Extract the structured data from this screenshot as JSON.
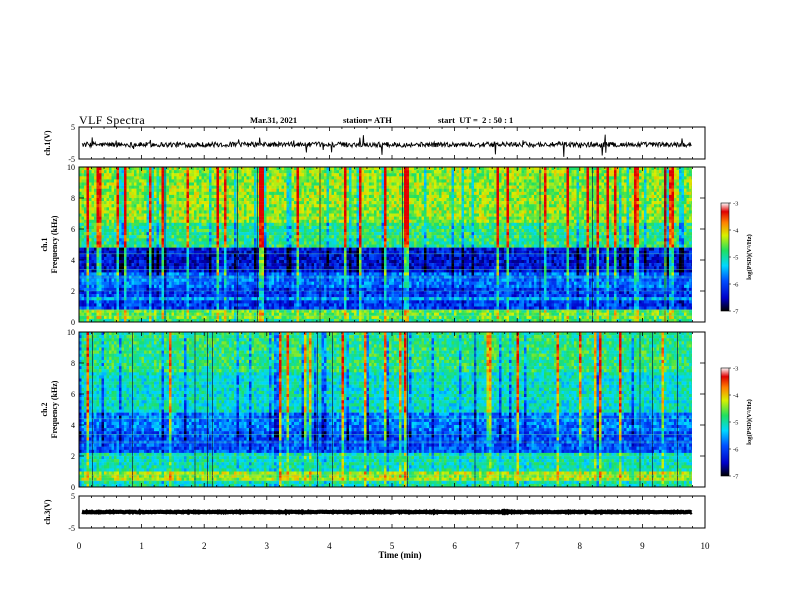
{
  "header": {
    "title": "VLF Spectra",
    "date": "Mar.31, 2021",
    "station": "station= ATH",
    "start_ut": "start  UT =  2 : 50 : 1"
  },
  "chart_data": [
    {
      "type": "line",
      "panel": "ch1-waveform",
      "ylabel": "ch.1(V)",
      "ylim": [
        -5,
        5
      ],
      "yticks": [
        "5",
        "-5"
      ],
      "xlim": [
        0,
        10
      ],
      "description_series": "noisy waveform around -0.5 V with spikes",
      "baseline": -0.5
    },
    {
      "type": "heatmap",
      "panel": "ch1-spectrogram",
      "ylabel": "Frequency (kHz)",
      "channel_label": "ch.1",
      "ylim": [
        0,
        10
      ],
      "yticks": [
        "0",
        "2",
        "4",
        "6",
        "8",
        "10"
      ],
      "xlim": [
        0,
        9.85
      ],
      "colorbar": {
        "label": "log(PSD)(V²/Hz)",
        "range": [
          -7,
          -3
        ],
        "ticks": [
          "-3",
          "-4",
          "-5",
          "-6",
          "-7"
        ]
      }
    },
    {
      "type": "heatmap",
      "panel": "ch2-spectrogram",
      "ylabel": "Frequency (kHz)",
      "channel_label": "ch.2",
      "ylim": [
        0,
        10
      ],
      "yticks": [
        "0",
        "2",
        "4",
        "6",
        "8",
        "10"
      ],
      "xlim": [
        0,
        9.85
      ],
      "colorbar": {
        "label": "log(PSD)(V²/Hz)",
        "range": [
          -7,
          -3
        ],
        "ticks": [
          "-3",
          "-4",
          "-5",
          "-6",
          "-7"
        ]
      }
    },
    {
      "type": "line",
      "panel": "ch3-waveform",
      "ylabel": "ch.3(V)",
      "ylim": [
        -5,
        5
      ],
      "yticks": [
        "5",
        "-5"
      ],
      "xlim": [
        0,
        10
      ],
      "baseline": 0.0,
      "xlabel": "Time (min)",
      "xticks": [
        "0",
        "1",
        "2",
        "3",
        "4",
        "5",
        "6",
        "7",
        "8",
        "9",
        "10"
      ]
    }
  ]
}
